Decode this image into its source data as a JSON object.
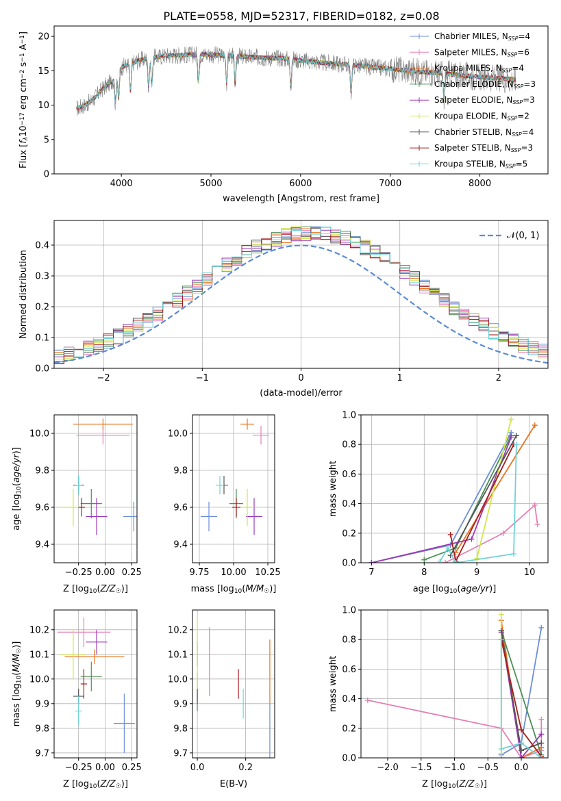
{
  "figure_title": "PLATE=0558, MJD=52317, FIBERID=0182, z=0.08",
  "colors": {
    "Chabrier MILES": "#6b8ed8",
    "Salpeter MILES": "#e57fb5",
    "Kroupa MILES": "#e8741f",
    "Chabrier ELODIE": "#4e8f59",
    "Salpeter ELODIE": "#9a39b6",
    "Kroupa ELODIE": "#cfe74a",
    "Chabrier STELIB": "#555555",
    "Salpeter STELIB": "#a81d1d",
    "Kroupa STELIB": "#6fd3d8",
    "normal": "#5b8ad6"
  },
  "chart_data": [
    {
      "id": "spectrum",
      "type": "line",
      "title": "PLATE=0558, MJD=52317, FIBERID=0182, z=0.08",
      "xlabel": "wavelength [Angstrom, rest frame]",
      "ylabel": "Flux [f_λ10^-17 erg cm^-2 s^-1 A^-1]",
      "xlim": [
        3250,
        8760
      ],
      "ylim": [
        0,
        21.5
      ],
      "xticks": [
        4000,
        5000,
        6000,
        7000,
        8000
      ],
      "yticks": [
        0,
        5,
        10,
        15,
        20
      ],
      "grid": false,
      "legend_position": "top-right",
      "legend": [
        {
          "name": "Chabrier MILES",
          "sub": "SSP",
          "n": "=4"
        },
        {
          "name": "Salpeter MILES",
          "sub": "SSP",
          "n": "=6"
        },
        {
          "name": "Kroupa MILES",
          "sub": "SSP",
          "n": "=4"
        },
        {
          "name": "Chabrier ELODIE",
          "sub": "SSP",
          "n": "=3"
        },
        {
          "name": "Salpeter ELODIE",
          "sub": "SSP",
          "n": "=3"
        },
        {
          "name": "Kroupa ELODIE",
          "sub": "SSP",
          "n": "=2"
        },
        {
          "name": "Chabrier STELIB",
          "sub": "SSP",
          "n": "=4"
        },
        {
          "name": "Salpeter STELIB",
          "sub": "SSP",
          "n": "=3"
        },
        {
          "name": "Kroupa STELIB",
          "sub": "SSP",
          "n": "=5"
        }
      ],
      "continuum": {
        "x": [
          3500,
          3600,
          3700,
          3800,
          3900,
          4000,
          4100,
          4200,
          4300,
          4500,
          4700,
          4900,
          5000,
          5200,
          5400,
          5600,
          5800,
          6000,
          6200,
          6400,
          6600,
          6800,
          7000,
          7200,
          7400,
          7600,
          7800,
          8000,
          8200,
          8400
        ],
        "y": [
          9.5,
          10,
          11,
          12.5,
          13.5,
          15.5,
          16,
          16.5,
          16.8,
          17.2,
          17.3,
          17.4,
          17.3,
          17.2,
          17.0,
          16.9,
          16.8,
          16.5,
          16.2,
          16.0,
          15.8,
          15.5,
          15.3,
          15.0,
          14.8,
          14.6,
          14.3,
          14.1,
          13.9,
          13.7
        ]
      },
      "absorption_lines": [
        3934,
        3969,
        4102,
        4304,
        4340,
        4861,
        5175,
        5270,
        5890,
        6563,
        7600
      ]
    },
    {
      "id": "residuals",
      "type": "line",
      "xlabel": "(data-model)/error",
      "ylabel": "Normed distribution",
      "xlim": [
        -2.5,
        2.5
      ],
      "ylim": [
        0,
        0.48
      ],
      "xticks": [
        -2,
        -1,
        0,
        1,
        2
      ],
      "yticks": [
        0.0,
        0.1,
        0.2,
        0.3,
        0.4
      ],
      "grid": true,
      "legend_position": "top-right",
      "normal_label": "𝒩(0, 1)",
      "bin_width": 0.1
    },
    {
      "id": "age_vs_Z",
      "type": "scatter",
      "xlabel": "Z [log10(Z/Z☉)]",
      "ylabel": "age  [log10(age/yr)]",
      "xlim": [
        -0.48,
        0.3
      ],
      "ylim": [
        9.3,
        10.1
      ],
      "xticks": [
        -0.25,
        0.0,
        0.25
      ],
      "yticks": [
        9.4,
        9.6,
        9.8,
        10.0
      ],
      "grid": true,
      "points": [
        {
          "series": "Chabrier MILES",
          "x": 0.27,
          "xerr": 0.1,
          "y": 9.55,
          "yerr": 0.08
        },
        {
          "series": "Salpeter MILES",
          "x": -0.02,
          "xerr": 0.25,
          "y": 9.99,
          "yerr": 0.05
        },
        {
          "series": "Kroupa MILES",
          "x": -0.02,
          "xerr": 0.28,
          "y": 10.05,
          "yerr": 0.03
        },
        {
          "series": "Chabrier ELODIE",
          "x": -0.13,
          "xerr": 0.1,
          "y": 9.62,
          "yerr": 0.08
        },
        {
          "series": "Salpeter ELODIE",
          "x": -0.08,
          "xerr": 0.1,
          "y": 9.55,
          "yerr": 0.1
        },
        {
          "series": "Kroupa ELODIE",
          "x": -0.3,
          "xerr": 0.12,
          "y": 9.6,
          "yerr": 0.1
        },
        {
          "series": "Chabrier STELIB",
          "x": -0.25,
          "xerr": 0.05,
          "y": 9.72,
          "yerr": 0.05
        },
        {
          "series": "Salpeter STELIB",
          "x": -0.22,
          "xerr": 0.03,
          "y": 9.6,
          "yerr": 0.05
        },
        {
          "series": "Kroupa STELIB",
          "x": -0.25,
          "xerr": 0.03,
          "y": 9.72,
          "yerr": 0.05
        }
      ]
    },
    {
      "id": "age_vs_mass",
      "type": "scatter",
      "xlabel": "mass [log10(M/M☉)]",
      "ylabel": "",
      "xlim": [
        9.7,
        10.3
      ],
      "ylim": [
        9.3,
        10.1
      ],
      "xticks": [
        9.75,
        10.0,
        10.25
      ],
      "yticks": [
        9.4,
        9.6,
        9.8,
        10.0
      ],
      "grid": true,
      "points": [
        {
          "series": "Chabrier MILES",
          "x": 9.82,
          "xerr": 0.06,
          "y": 9.55,
          "yerr": 0.08
        },
        {
          "series": "Salpeter MILES",
          "x": 10.2,
          "xerr": 0.06,
          "y": 9.99,
          "yerr": 0.05
        },
        {
          "series": "Kroupa MILES",
          "x": 10.1,
          "xerr": 0.05,
          "y": 10.05,
          "yerr": 0.03
        },
        {
          "series": "Chabrier ELODIE",
          "x": 10.02,
          "xerr": 0.05,
          "y": 9.62,
          "yerr": 0.08
        },
        {
          "series": "Salpeter ELODIE",
          "x": 10.15,
          "xerr": 0.06,
          "y": 9.55,
          "yerr": 0.1
        },
        {
          "series": "Kroupa ELODIE",
          "x": 10.1,
          "xerr": 0.05,
          "y": 9.6,
          "yerr": 0.1
        },
        {
          "series": "Chabrier STELIB",
          "x": 9.93,
          "xerr": 0.03,
          "y": 9.72,
          "yerr": 0.05
        },
        {
          "series": "Salpeter STELIB",
          "x": 10.02,
          "xerr": 0.03,
          "y": 9.6,
          "yerr": 0.05
        },
        {
          "series": "Kroupa STELIB",
          "x": 9.9,
          "xerr": 0.03,
          "y": 9.72,
          "yerr": 0.05
        }
      ]
    },
    {
      "id": "weight_vs_age",
      "type": "line",
      "xlabel": "age  [log10(age/yr)]",
      "ylabel": "mass weight",
      "xlim": [
        6.8,
        10.35
      ],
      "ylim": [
        0,
        1.0
      ],
      "xticks": [
        7,
        8,
        9,
        10
      ],
      "yticks": [
        0.0,
        0.2,
        0.4,
        0.6,
        0.8,
        1.0
      ],
      "grid": true,
      "series": [
        {
          "name": "Chabrier MILES",
          "x": [
            7.0,
            8.5,
            9.65
          ],
          "y": [
            0.0,
            0.12,
            0.88
          ]
        },
        {
          "name": "Salpeter MILES",
          "x": [
            8.4,
            9.5,
            10.1,
            10.15
          ],
          "y": [
            0.0,
            0.2,
            0.39,
            0.26
          ]
        },
        {
          "name": "Kroupa MILES",
          "x": [
            8.6,
            10.1
          ],
          "y": [
            0.07,
            0.93
          ]
        },
        {
          "name": "Chabrier ELODIE",
          "x": [
            8.0,
            8.6,
            9.65
          ],
          "y": [
            0.02,
            0.1,
            0.86
          ]
        },
        {
          "name": "Salpeter ELODIE",
          "x": [
            7.0,
            8.9,
            9.65
          ],
          "y": [
            0.0,
            0.16,
            0.85
          ]
        },
        {
          "name": "Kroupa ELODIE",
          "x": [
            9.0,
            9.65
          ],
          "y": [
            0.03,
            0.97
          ]
        },
        {
          "name": "Chabrier STELIB",
          "x": [
            8.5,
            9.75
          ],
          "y": [
            0.05,
            0.86
          ]
        },
        {
          "name": "Salpeter STELIB",
          "x": [
            8.5,
            8.6,
            9.7
          ],
          "y": [
            0.19,
            0.01,
            0.8
          ]
        },
        {
          "name": "Kroupa STELIB",
          "x": [
            8.3,
            8.45,
            8.6,
            9.7,
            9.75
          ],
          "y": [
            0.01,
            0.1,
            0.0,
            0.06,
            0.8
          ]
        }
      ]
    },
    {
      "id": "mass_vs_Z",
      "type": "scatter",
      "xlabel": "Z [log10(Z/Z☉)]",
      "ylabel": "mass [log10(M/M☉)]",
      "xlim": [
        -0.48,
        0.3
      ],
      "ylim": [
        9.68,
        10.28
      ],
      "xticks": [
        -0.25,
        0.0,
        0.25
      ],
      "yticks": [
        9.7,
        9.8,
        9.9,
        10.0,
        10.1,
        10.2
      ],
      "grid": true,
      "points": [
        {
          "series": "Chabrier MILES",
          "x": 0.18,
          "xerr": 0.1,
          "y": 9.82,
          "yerr": 0.12
        },
        {
          "series": "Salpeter MILES",
          "x": -0.2,
          "xerr": 0.25,
          "y": 10.19,
          "yerr": 0.06
        },
        {
          "series": "Kroupa MILES",
          "x": -0.1,
          "xerr": 0.28,
          "y": 10.09,
          "yerr": 0.03
        },
        {
          "series": "Chabrier ELODIE",
          "x": -0.13,
          "xerr": 0.1,
          "y": 10.01,
          "yerr": 0.06
        },
        {
          "series": "Salpeter ELODIE",
          "x": -0.08,
          "xerr": 0.1,
          "y": 10.15,
          "yerr": 0.05
        },
        {
          "series": "Kroupa ELODIE",
          "x": -0.3,
          "xerr": 0.12,
          "y": 10.1,
          "yerr": 0.1
        },
        {
          "series": "Chabrier STELIB",
          "x": -0.25,
          "xerr": 0.05,
          "y": 9.93,
          "yerr": 0.03
        },
        {
          "series": "Salpeter STELIB",
          "x": -0.2,
          "xerr": 0.03,
          "y": 9.98,
          "yerr": 0.06
        },
        {
          "series": "Kroupa STELIB",
          "x": -0.25,
          "xerr": 0.03,
          "y": 9.87,
          "yerr": 0.06
        }
      ]
    },
    {
      "id": "mass_vs_EBV",
      "type": "scatter",
      "xlabel": "E(B-V)",
      "ylabel": "",
      "xlim": [
        -0.02,
        0.32
      ],
      "ylim": [
        9.68,
        10.28
      ],
      "xticks": [
        0.0,
        0.2
      ],
      "yticks": [
        9.7,
        9.8,
        9.9,
        10.0,
        10.1,
        10.2
      ],
      "grid": true,
      "points": [
        {
          "series": "Chabrier MILES",
          "x": 0.3,
          "y": 9.78,
          "yerr": 0.12
        },
        {
          "series": "Salpeter MILES",
          "x": 0.05,
          "y": 10.07,
          "yerr": 0.14
        },
        {
          "series": "Kroupa MILES",
          "x": 0.3,
          "y": 10.03,
          "yerr": 0.13
        },
        {
          "series": "Chabrier ELODIE",
          "x": 0.0,
          "y": 9.95,
          "yerr": 0.08
        },
        {
          "series": "Salpeter ELODIE",
          "x": 0.0,
          "y": 10.1,
          "yerr": 0.05
        },
        {
          "series": "Kroupa ELODIE",
          "x": 0.0,
          "y": 10.1,
          "yerr": 0.15
        },
        {
          "series": "Chabrier STELIB",
          "x": 0.0,
          "y": 9.93,
          "yerr": 0.03
        },
        {
          "series": "Salpeter STELIB",
          "x": 0.17,
          "y": 9.98,
          "yerr": 0.06
        },
        {
          "series": "Kroupa STELIB",
          "x": 0.19,
          "y": 9.9,
          "yerr": 0.06
        }
      ]
    },
    {
      "id": "weight_vs_Z",
      "type": "line",
      "xlabel": "Z [log10(Z/Z☉)]",
      "ylabel": "mass weight",
      "xlim": [
        -2.4,
        0.4
      ],
      "ylim": [
        0,
        1.0
      ],
      "xticks": [
        -2.0,
        -1.5,
        -1.0,
        -0.5,
        0.0
      ],
      "yticks": [
        0.0,
        0.2,
        0.4,
        0.6,
        0.8,
        1.0
      ],
      "grid": true,
      "series": [
        {
          "name": "Chabrier MILES",
          "x": [
            -0.3,
            0.0,
            0.3
          ],
          "y": [
            0.02,
            0.1,
            0.88
          ]
        },
        {
          "name": "Salpeter MILES",
          "x": [
            -2.3,
            -0.3,
            0.0,
            0.3,
            0.3
          ],
          "y": [
            0.39,
            0.2,
            0.0,
            0.05,
            0.26
          ]
        },
        {
          "name": "Kroupa MILES",
          "x": [
            -0.3,
            0.0,
            0.3
          ],
          "y": [
            0.93,
            0.0,
            0.07
          ]
        },
        {
          "name": "Chabrier ELODIE",
          "x": [
            -0.3,
            0.3
          ],
          "y": [
            0.86,
            0.02
          ]
        },
        {
          "name": "Salpeter ELODIE",
          "x": [
            -0.3,
            0.0,
            0.3
          ],
          "y": [
            0.85,
            0.0,
            0.16
          ]
        },
        {
          "name": "Kroupa ELODIE",
          "x": [
            -0.3,
            -0.3
          ],
          "y": [
            0.97,
            0.03
          ]
        },
        {
          "name": "Chabrier STELIB",
          "x": [
            -0.3,
            0.0,
            0.3
          ],
          "y": [
            0.86,
            0.05,
            0.1
          ]
        },
        {
          "name": "Salpeter STELIB",
          "x": [
            -0.3,
            0.0,
            0.3
          ],
          "y": [
            0.8,
            0.19,
            0.01
          ]
        },
        {
          "name": "Kroupa STELIB",
          "x": [
            -0.3,
            -0.3,
            0.0,
            0.3
          ],
          "y": [
            0.8,
            0.06,
            0.1,
            0.0
          ]
        }
      ]
    }
  ]
}
